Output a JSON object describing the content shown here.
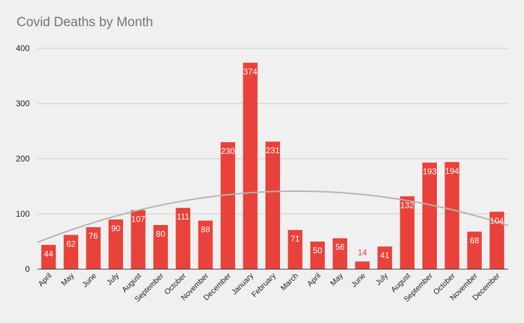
{
  "chart_data": {
    "type": "bar",
    "title": "Covid Deaths by Month",
    "xlabel": "",
    "ylabel": "",
    "ylim": [
      0,
      400
    ],
    "yticks": [
      0,
      100,
      200,
      300,
      400
    ],
    "grid": true,
    "legend": "none",
    "categories": [
      "April",
      "May",
      "June",
      "July",
      "August",
      "September",
      "October",
      "November",
      "December",
      "January",
      "February",
      "March",
      "April",
      "May",
      "June",
      "July",
      "August",
      "September",
      "October",
      "November",
      "December"
    ],
    "series": [
      {
        "name": "Covid Deaths",
        "values": [
          44,
          62,
          76,
          90,
          107,
          80,
          111,
          88,
          230,
          374,
          231,
          71,
          50,
          56,
          14,
          41,
          132,
          193,
          194,
          68,
          104
        ]
      }
    ],
    "trendline": {
      "type": "polynomial",
      "description": "gray curved trend line over the bars"
    },
    "colors": {
      "bar": "#e8423a",
      "label_inside": "#ffffff",
      "label_outside": "#e8423a",
      "grid": "#cccccc",
      "axis": "#333333",
      "trend": "#b3b3b3"
    }
  }
}
